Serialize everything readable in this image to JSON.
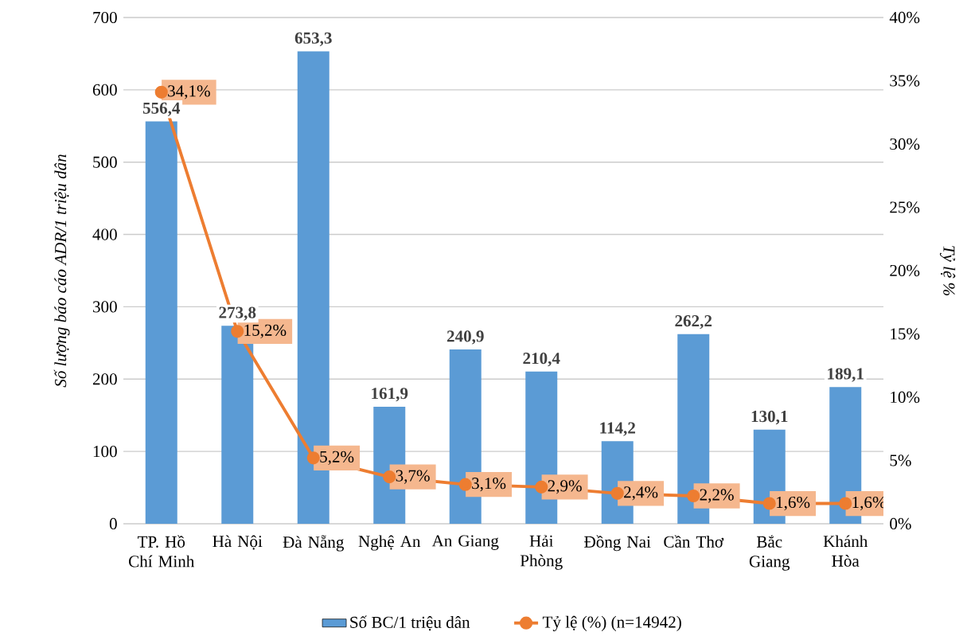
{
  "chart_data": {
    "type": "bar",
    "ylabel": "*Số lượng báo cáo ADR/1 triệu dân*",
    "y2label": "*Tỷ lệ %*",
    "categories": [
      "TP. Hồ Chí Minh",
      "Hà Nội",
      "Đà Nẵng",
      "Nghệ An",
      "An Giang",
      "Hải Phòng",
      "Đồng Nai",
      "Cần Thơ",
      "Bắc Giang",
      "Khánh Hòa"
    ],
    "series": [
      {
        "name": "Số BC/1 triệu dân",
        "color": "#5b9bd5",
        "values": [
          556.4,
          273.8,
          653.3,
          161.9,
          240.9,
          210.4,
          114.2,
          262.2,
          130.1,
          189.1
        ],
        "value_labels": [
          "556,4",
          "273,8",
          "653,3",
          "161,9",
          "240,9",
          "210,4",
          "114,2",
          "262,2",
          "130,1",
          "189,1"
        ]
      },
      {
        "name": "Tỷ lệ (%) (n=14942)",
        "type": "line",
        "axis": "y2",
        "color": "#ed7d31",
        "marker": "circle",
        "values": [
          34.1,
          15.2,
          5.2,
          3.7,
          3.1,
          2.9,
          2.4,
          2.2,
          1.6,
          1.6
        ],
        "value_labels": [
          "34,1%",
          "15,2%",
          "5,2%",
          "3,7%",
          "3,1%",
          "2,9%",
          "2,4%",
          "2,2%",
          "1,6%",
          "1,6%"
        ]
      }
    ],
    "ylim": [
      0,
      700
    ],
    "yticks": [
      0,
      100,
      200,
      300,
      400,
      500,
      600,
      700
    ],
    "y2lim": [
      0,
      40
    ],
    "y2ticks": [
      {
        "value": 0,
        "label": "0%"
      },
      {
        "value": 5,
        "label": "5%"
      },
      {
        "value": 10,
        "label": "10%"
      },
      {
        "value": 15,
        "label": "15%"
      },
      {
        "value": 20,
        "label": "20%"
      },
      {
        "value": 25,
        "label": "25%"
      },
      {
        "value": 30,
        "label": "30%"
      },
      {
        "value": 35,
        "label": "35%"
      },
      {
        "value": 40,
        "label": "40%"
      }
    ],
    "grid": "y",
    "legend": "bottom"
  }
}
